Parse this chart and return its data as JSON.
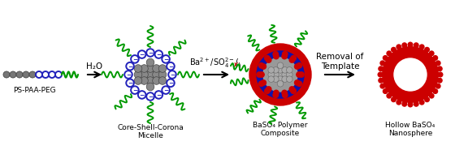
{
  "background_color": "#ffffff",
  "arrow_color": "#000000",
  "step1_label": "H₂O",
  "step3_label": "Removal of\nTemplate",
  "label_ps_paa_peg": "PS-PAA-PEG",
  "label_micelle": "Core-Shell-Corona\nMicelle",
  "label_composite": "BaSO₄ Polymer\nComposite",
  "label_hollow": "Hollow BaSO₄\nNanosphere",
  "ps_color": "#777777",
  "paa_color": "#2222bb",
  "peg_color": "#009900",
  "baso4_red": "#cc0000",
  "baso4_blue": "#1111aa",
  "core_gray": "#888888",
  "cross_color": "#cc0000",
  "text_color": "#000000",
  "fontsize_label": 6.5,
  "fontsize_step": 7.5,
  "figsize": [
    5.6,
    1.85
  ],
  "dpi": 100
}
